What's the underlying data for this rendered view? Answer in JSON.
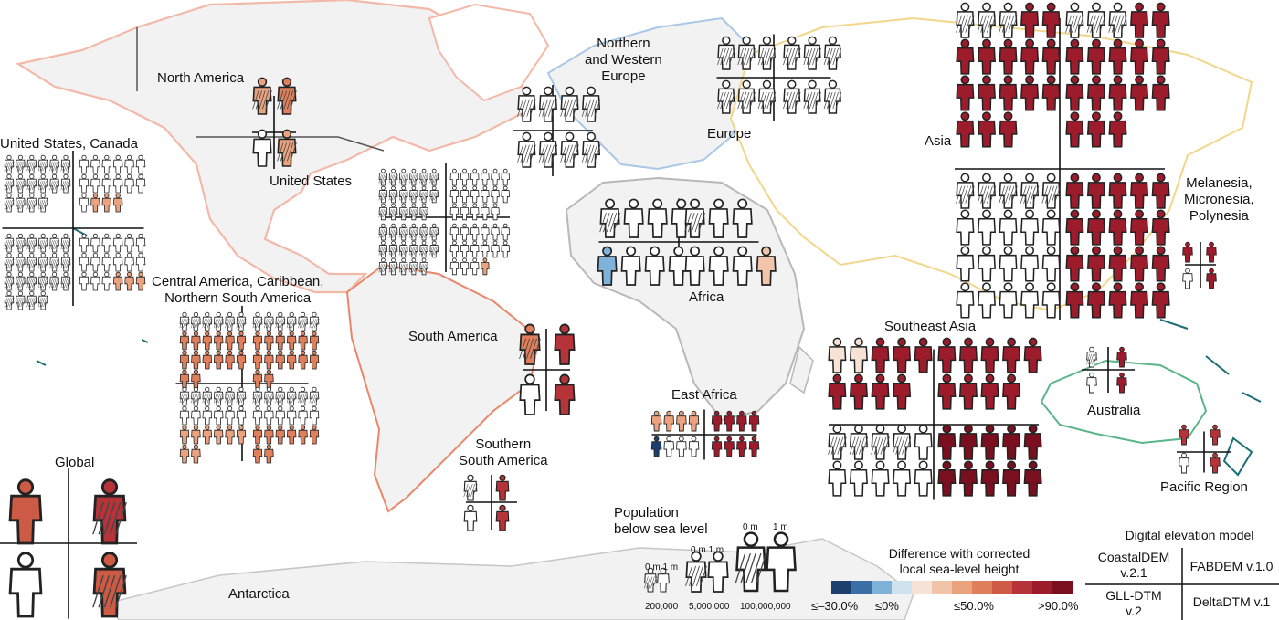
{
  "regions": {
    "north_america": "North America",
    "us_canada": "United States, Canada",
    "united_states": "United States",
    "central_america": "Central America, Caribbean,\nNorthern South America",
    "south_america": "South America",
    "southern_south_america": "Southern\nSouth America",
    "nw_europe": "Northern\nand Western\nEurope",
    "europe": "Europe",
    "africa": "Africa",
    "east_africa": "East Africa",
    "asia": "Asia",
    "southeast_asia": "Southeast Asia",
    "melanesia": "Melanesia,\nMicronesia,\nPolynesia",
    "australia": "Australia",
    "pacific_region": "Pacific Region",
    "global": "Global",
    "antarctica": "Antarctica"
  },
  "population_legend": {
    "title": "Population\nbelow sea level",
    "sizes": [
      {
        "count": "200,000",
        "heights": "0 m 1 m"
      },
      {
        "count": "5,000,000",
        "heights": "0 m 1 m"
      },
      {
        "count": "100,000,000",
        "heights_left": "0 m",
        "heights_right": "1 m"
      }
    ]
  },
  "color_legend": {
    "title": "Difference with corrected\nlocal sea-level height",
    "labels": [
      "≤–30.0%",
      "≤0%",
      "≤50.0%",
      ">90.0%"
    ],
    "colors": [
      "#1d3f6e",
      "#3a6fa6",
      "#7fb2d8",
      "#cfe3ef",
      "#f7e2d6",
      "#f2c4aa",
      "#eba37f",
      "#e07f5c",
      "#cd5a44",
      "#b7333a",
      "#9c1c2c",
      "#7a0f1f"
    ]
  },
  "dem_legend": {
    "title": "Digital elevation model",
    "top_left": "CoastalDEM\nv.2.1",
    "top_right": "FABDEM v.1.0",
    "bottom_left": "GLL-DTM\nv.2",
    "bottom_right": "DeltaDTM v.1"
  }
}
